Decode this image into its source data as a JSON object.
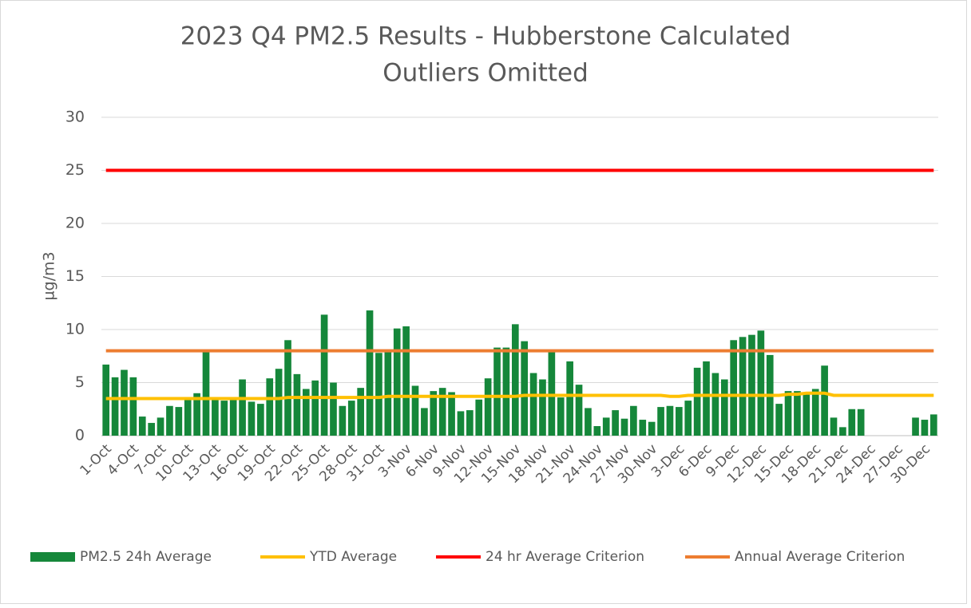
{
  "chart_data": {
    "type": "bar",
    "title": [
      "2023 Q4 PM2.5 Results - Hubberstone Calculated",
      "Outliers Omitted"
    ],
    "y_label": "µg/m3",
    "categories": [
      "1-Oct",
      null,
      null,
      "4-Oct",
      null,
      null,
      "7-Oct",
      null,
      null,
      "10-Oct",
      null,
      null,
      "13-Oct",
      null,
      null,
      "16-Oct",
      null,
      null,
      "19-Oct",
      null,
      null,
      "22-Oct",
      null,
      null,
      "25-Oct",
      null,
      null,
      "28-Oct",
      null,
      null,
      "31-Oct",
      null,
      null,
      "3-Nov",
      null,
      null,
      "6-Nov",
      null,
      null,
      "9-Nov",
      null,
      null,
      "12-Nov",
      null,
      null,
      "15-Nov",
      null,
      null,
      "18-Nov",
      null,
      null,
      "21-Nov",
      null,
      null,
      "24-Nov",
      null,
      null,
      "27-Nov",
      null,
      null,
      "30-Nov",
      null,
      null,
      "3-Dec",
      null,
      null,
      "6-Dec",
      null,
      null,
      "9-Dec",
      null,
      null,
      "12-Dec",
      null,
      null,
      "15-Dec",
      null,
      null,
      "18-Dec",
      null,
      null,
      "21-Dec",
      null,
      null,
      "24-Dec",
      null,
      null,
      "27-Dec",
      null,
      null,
      "30-Dec",
      null
    ],
    "series": [
      {
        "name": "PM2.5 24h Average",
        "type": "bar",
        "color": "#15873a",
        "values": [
          6.7,
          5.5,
          6.2,
          5.5,
          1.8,
          1.2,
          1.7,
          2.8,
          2.7,
          3.5,
          4.0,
          8.0,
          3.4,
          3.3,
          3.5,
          5.3,
          3.2,
          3.0,
          5.4,
          6.3,
          9.0,
          5.8,
          4.4,
          5.2,
          11.4,
          5.0,
          2.8,
          3.3,
          4.5,
          11.8,
          7.8,
          7.9,
          10.1,
          10.3,
          4.7,
          2.6,
          4.2,
          4.5,
          4.1,
          2.3,
          2.4,
          3.4,
          5.4,
          8.3,
          8.3,
          10.5,
          8.9,
          5.9,
          5.3,
          7.9,
          3.6,
          7.0,
          4.8,
          2.6,
          0.9,
          1.7,
          2.4,
          1.6,
          2.8,
          1.5,
          1.3,
          2.7,
          2.8,
          2.7,
          3.3,
          6.4,
          7.0,
          5.9,
          5.3,
          9.0,
          9.3,
          9.5,
          9.9,
          7.6,
          3.0,
          4.2,
          4.2,
          4.0,
          4.4,
          6.6,
          1.7,
          0.8,
          2.5,
          2.5,
          null,
          null,
          null,
          null,
          null,
          1.7,
          1.5,
          2.0
        ]
      },
      {
        "name": "YTD Average",
        "type": "line",
        "color": "#ffc000",
        "values": [
          3.5,
          3.5,
          3.5,
          3.5,
          3.5,
          3.5,
          3.5,
          3.5,
          3.5,
          3.5,
          3.5,
          3.5,
          3.5,
          3.5,
          3.5,
          3.5,
          3.5,
          3.5,
          3.5,
          3.5,
          3.6,
          3.6,
          3.6,
          3.6,
          3.6,
          3.6,
          3.6,
          3.6,
          3.6,
          3.6,
          3.6,
          3.7,
          3.7,
          3.7,
          3.7,
          3.7,
          3.7,
          3.7,
          3.7,
          3.7,
          3.7,
          3.7,
          3.7,
          3.7,
          3.7,
          3.7,
          3.8,
          3.8,
          3.8,
          3.8,
          3.8,
          3.8,
          3.8,
          3.8,
          3.8,
          3.8,
          3.8,
          3.8,
          3.8,
          3.8,
          3.8,
          3.8,
          3.7,
          3.7,
          3.8,
          3.8,
          3.8,
          3.8,
          3.8,
          3.8,
          3.8,
          3.8,
          3.8,
          3.8,
          3.8,
          3.9,
          3.9,
          4.0,
          4.0,
          4.0,
          3.8,
          3.8,
          3.8,
          3.8,
          3.8,
          3.8,
          3.8,
          3.8,
          3.8,
          3.8,
          3.8,
          3.8
        ]
      },
      {
        "name": "24 hr Average Criterion",
        "type": "line",
        "color": "#ff0000",
        "values": [
          25,
          25,
          25,
          25,
          25,
          25,
          25,
          25,
          25,
          25,
          25,
          25,
          25,
          25,
          25,
          25,
          25,
          25,
          25,
          25,
          25,
          25,
          25,
          25,
          25,
          25,
          25,
          25,
          25,
          25,
          25,
          25,
          25,
          25,
          25,
          25,
          25,
          25,
          25,
          25,
          25,
          25,
          25,
          25,
          25,
          25,
          25,
          25,
          25,
          25,
          25,
          25,
          25,
          25,
          25,
          25,
          25,
          25,
          25,
          25,
          25,
          25,
          25,
          25,
          25,
          25,
          25,
          25,
          25,
          25,
          25,
          25,
          25,
          25,
          25,
          25,
          25,
          25,
          25,
          25,
          25,
          25,
          25,
          25,
          25,
          25,
          25,
          25,
          25,
          25,
          25,
          25
        ]
      },
      {
        "name": "Annual Average Criterion",
        "type": "line",
        "color": "#ed7d31",
        "values": [
          8,
          8,
          8,
          8,
          8,
          8,
          8,
          8,
          8,
          8,
          8,
          8,
          8,
          8,
          8,
          8,
          8,
          8,
          8,
          8,
          8,
          8,
          8,
          8,
          8,
          8,
          8,
          8,
          8,
          8,
          8,
          8,
          8,
          8,
          8,
          8,
          8,
          8,
          8,
          8,
          8,
          8,
          8,
          8,
          8,
          8,
          8,
          8,
          8,
          8,
          8,
          8,
          8,
          8,
          8,
          8,
          8,
          8,
          8,
          8,
          8,
          8,
          8,
          8,
          8,
          8,
          8,
          8,
          8,
          8,
          8,
          8,
          8,
          8,
          8,
          8,
          8,
          8,
          8,
          8,
          8,
          8,
          8,
          8,
          8,
          8,
          8,
          8,
          8,
          8,
          8,
          8
        ]
      }
    ],
    "ylim": [
      0,
      30
    ],
    "yticks": [
      0,
      5,
      10,
      15,
      20,
      25,
      30
    ],
    "grid": true,
    "legend": "bottom"
  }
}
